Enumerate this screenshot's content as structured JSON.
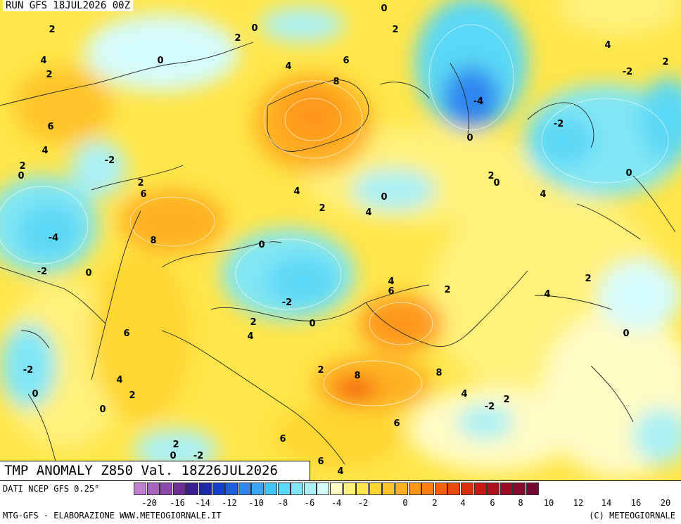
{
  "header": {
    "run_label": "RUN GFS 18JUL2026 00Z",
    "title": "TMP ANOMALY Z850 Val. 18Z26JUL2026"
  },
  "footer": {
    "data_source": "DATI NCEP GFS 0.25°",
    "credit_left": "MTG-GFS - ELABORAZIONE WWW.METEOGIORNALE.IT",
    "credit_right": "(C) METEOGIORNALE"
  },
  "legend": {
    "colors": [
      "#c07fd0",
      "#a865c0",
      "#8e4aaa",
      "#6f2f95",
      "#3a1e8f",
      "#1c2aa8",
      "#1441c8",
      "#2060e0",
      "#2f86f0",
      "#3aa6f5",
      "#45c4f8",
      "#5ad8f5",
      "#80e6f5",
      "#aaf0f5",
      "#d4fbfb",
      "#fffbc4",
      "#fff17a",
      "#ffe64a",
      "#ffd633",
      "#ffc52a",
      "#ffb020",
      "#ff981a",
      "#ff7f14",
      "#f5620f",
      "#e84a0e",
      "#d8300e",
      "#c71a16",
      "#b0101c",
      "#9c0c25",
      "#860a2c",
      "#720a33"
    ],
    "ticks": [
      "-20",
      "-16",
      "-14",
      "-12",
      "-10",
      "-8",
      "-6",
      "-4",
      "-2",
      "0",
      "2",
      "4",
      "6",
      "8",
      "10",
      "12",
      "14",
      "16",
      "20"
    ]
  },
  "contour_labels": [
    "2",
    "0",
    "2",
    "0",
    "2",
    "4",
    "2",
    "4",
    "0",
    "4",
    "6",
    "8",
    "2",
    "-4",
    "-2",
    "6",
    "4",
    "-2",
    "-2",
    "0",
    "0",
    "2",
    "0",
    "2",
    "0",
    "2",
    "4",
    "6",
    "4",
    "2",
    "0",
    "-4",
    "4",
    "8",
    "0",
    "-2",
    "0",
    "4",
    "6",
    "2",
    "4",
    "2",
    "-2",
    "0",
    "-2",
    "2",
    "4",
    "0",
    "6",
    "2",
    "8",
    "8",
    "4",
    "2",
    "0",
    "6",
    "2",
    "0",
    "-2",
    "6",
    "4",
    "6",
    "4",
    "2",
    "0",
    "-2"
  ]
}
